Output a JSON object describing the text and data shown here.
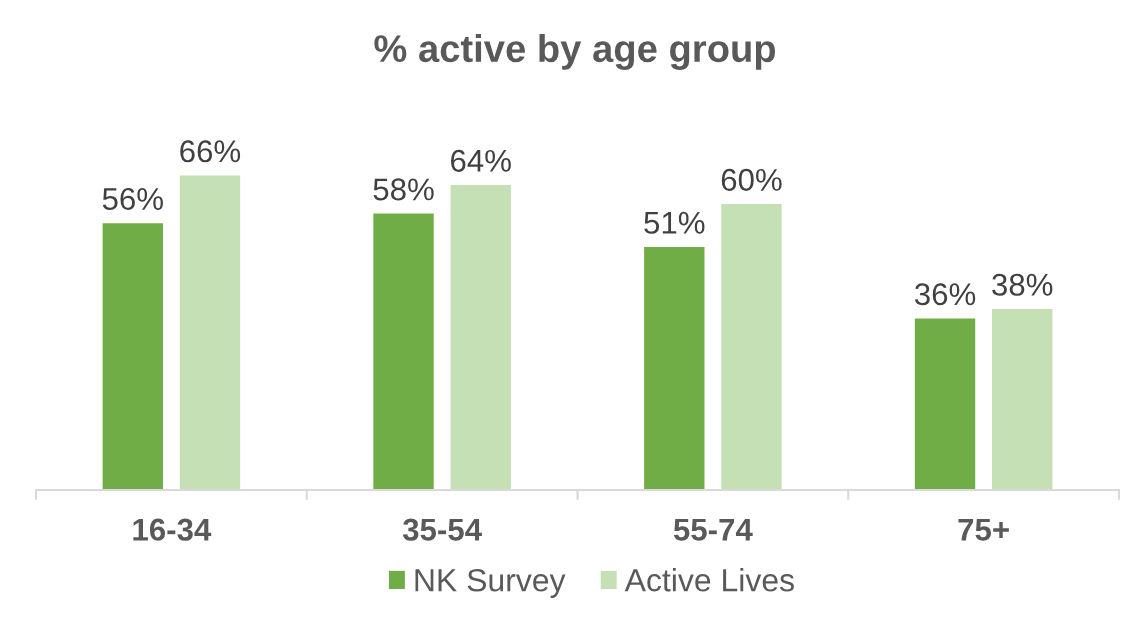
{
  "chart_data": {
    "type": "bar",
    "title": "% active by age group",
    "categories": [
      "16-34",
      "35-54",
      "55-74",
      "75+"
    ],
    "series": [
      {
        "name": "NK Survey",
        "color": "#70ad47",
        "values": [
          56,
          58,
          51,
          36
        ],
        "value_labels": [
          "56%",
          "58%",
          "51%",
          "36%"
        ]
      },
      {
        "name": "Active Lives",
        "color": "#c5e0b4",
        "values": [
          66,
          64,
          60,
          38
        ],
        "value_labels": [
          "66%",
          "64%",
          "60%",
          "38%"
        ]
      }
    ],
    "tick_labels": "x",
    "legend": "bottom"
  }
}
